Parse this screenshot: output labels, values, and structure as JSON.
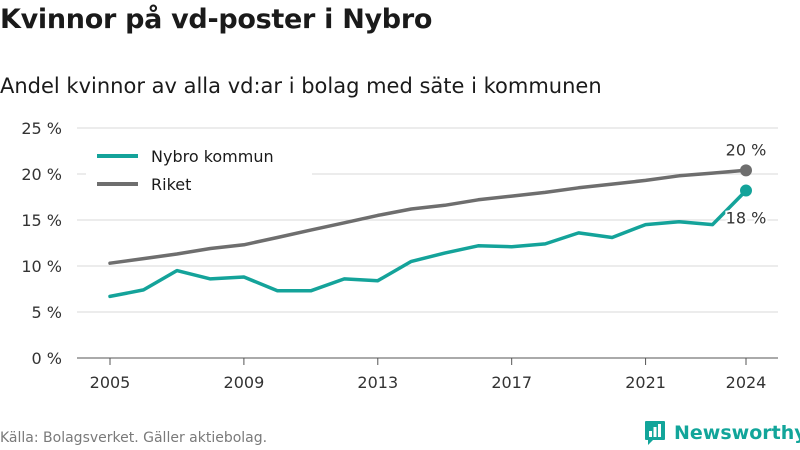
{
  "header": {
    "title": "Kvinnor på vd-poster i Nybro",
    "subtitle": "Andel kvinnor av alla vd:ar i bolag med säte i kommunen"
  },
  "footer": {
    "source": "Källa: Bolagsverket. Gäller aktiebolag.",
    "brand": "Newsworthy"
  },
  "colors": {
    "nybro": "#14a39a",
    "riket": "#6e6e6e",
    "grid": "#d9d9d9",
    "brand": "#12a59a"
  },
  "chart_data": {
    "type": "line",
    "title": "Kvinnor på vd-poster i Nybro",
    "subtitle": "Andel kvinnor av alla vd:ar i bolag med säte i kommunen",
    "xlabel": "",
    "ylabel": "",
    "x": [
      2005,
      2006,
      2007,
      2008,
      2009,
      2010,
      2011,
      2012,
      2013,
      2014,
      2015,
      2016,
      2017,
      2018,
      2019,
      2020,
      2021,
      2022,
      2023,
      2024
    ],
    "xlim": [
      2005,
      2024
    ],
    "x_ticks": [
      2005,
      2009,
      2013,
      2017,
      2021,
      2024
    ],
    "ylim": [
      0,
      25
    ],
    "y_ticks": [
      0,
      5,
      10,
      15,
      20,
      25
    ],
    "y_tick_suffix": " %",
    "grid": true,
    "legend_position": "top-left",
    "series": [
      {
        "name": "Nybro kommun",
        "color": "#14a39a",
        "values": [
          6.7,
          7.4,
          9.5,
          8.6,
          8.8,
          7.3,
          7.3,
          8.6,
          8.4,
          10.5,
          11.4,
          12.2,
          12.1,
          12.4,
          13.6,
          13.1,
          14.5,
          14.8,
          14.5,
          18.2
        ],
        "end_label": "18 %"
      },
      {
        "name": "Riket",
        "color": "#6e6e6e",
        "values": [
          10.3,
          10.8,
          11.3,
          11.9,
          12.3,
          13.1,
          13.9,
          14.7,
          15.5,
          16.2,
          16.6,
          17.2,
          17.6,
          18.0,
          18.5,
          18.9,
          19.3,
          19.8,
          20.1,
          20.4
        ],
        "end_label": "20 %"
      }
    ]
  }
}
